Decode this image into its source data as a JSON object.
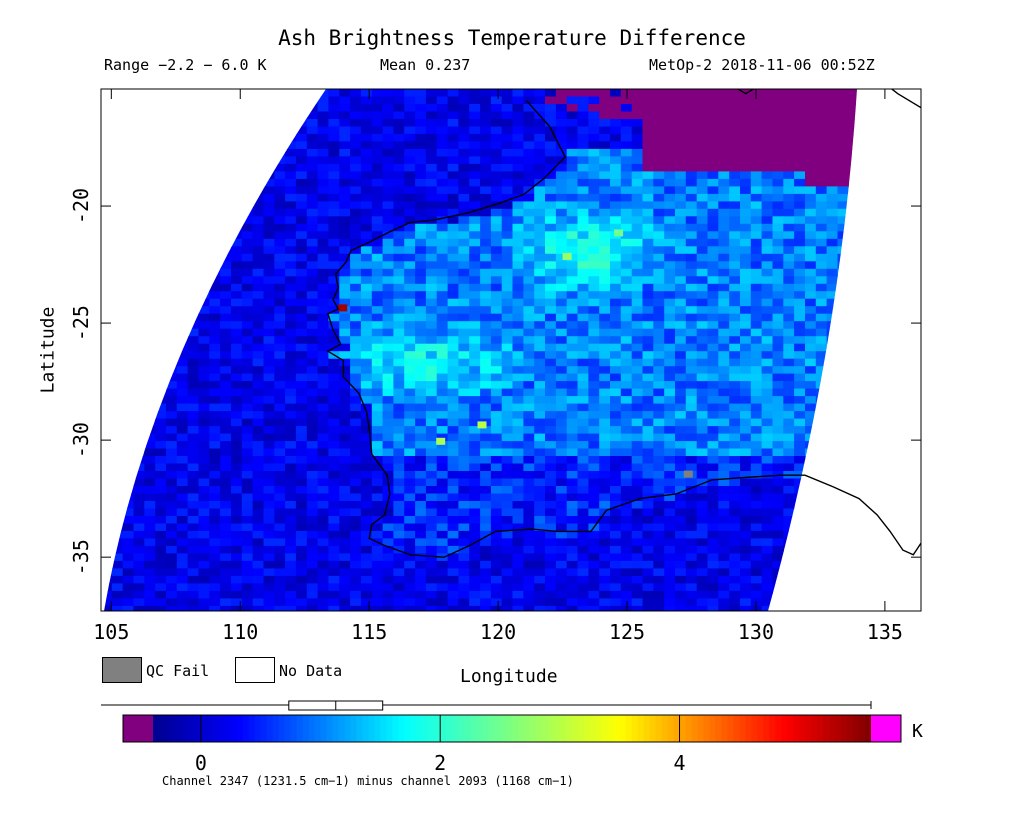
{
  "header": {
    "title": "Ash Brightness Temperature Difference",
    "range": "Range −2.2 − 6.0 K",
    "mean": "Mean 0.237",
    "satellite_time": "MetOp-2 2018-11-06 00:52Z"
  },
  "axes": {
    "xlabel": "Longitude",
    "ylabel": "Latitude",
    "x_ticks": [
      105,
      110,
      115,
      120,
      125,
      130,
      135
    ],
    "y_ticks": [
      -20,
      -25,
      -30,
      -35
    ],
    "x_range": [
      104.6,
      136.4
    ],
    "y_range": [
      -37.3,
      -15.0
    ]
  },
  "legend": {
    "qc_fail": "QC Fail",
    "no_data": "No Data",
    "qc_color": "#808080",
    "no_data_color": "#ffffff"
  },
  "colorbar": {
    "unit": "K",
    "ticks": [
      0,
      2,
      4
    ],
    "range": [
      -0.4,
      5.6
    ],
    "under_color": "#800080",
    "over_color": "#ff00ff",
    "caption": "Channel 2347 (1231.5 cm−1) minus channel 2093 (1168 cm−1)",
    "box_stats": {
      "whisker_low": -2.2,
      "q1": -0.2,
      "median": 0.3,
      "q3": 0.8,
      "whisker_high": 6.0
    }
  },
  "map": {
    "missing_color": "#800080",
    "ocean_typical_value": 0.2,
    "land_typical_value": 1.0,
    "hotspots": [
      {
        "lon": 113.8,
        "lat": -24.2,
        "value": 5.4
      },
      {
        "lon": 117.6,
        "lat": -29.9,
        "value": 2.9
      },
      {
        "lon": 119.2,
        "lat": -29.2,
        "value": 3.0
      },
      {
        "lon": 122.5,
        "lat": -22.0,
        "value": 2.8
      },
      {
        "lon": 124.5,
        "lat": -21.0,
        "value": 2.5
      },
      {
        "lon": 127.2,
        "lat": -31.3,
        "value": "QC Fail"
      }
    ]
  }
}
